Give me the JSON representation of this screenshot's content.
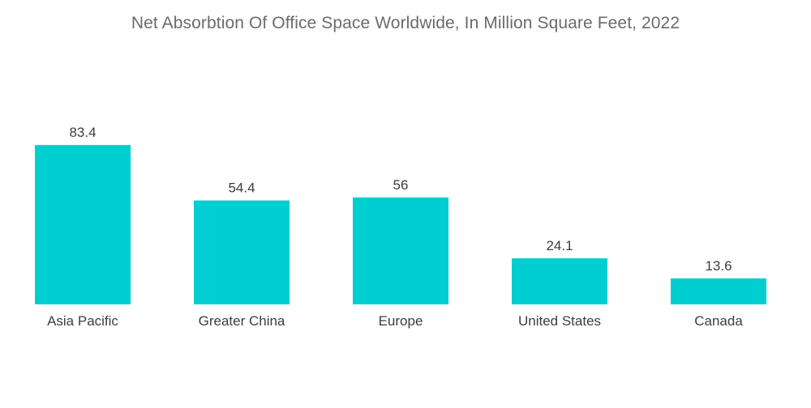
{
  "chart_data": {
    "type": "bar",
    "title": "Net Absorbtion Of Office Space Worldwide, In Million Square Feet, 2022",
    "categories": [
      "Asia Pacific",
      "Greater China",
      "Europe",
      "United States",
      "Canada"
    ],
    "values": [
      83.4,
      54.4,
      56,
      24.1,
      13.6
    ],
    "value_labels": [
      "83.4",
      "54.4",
      "56",
      "24.1",
      "13.6"
    ],
    "xlabel": "",
    "ylabel": "",
    "ylim": [
      0,
      100
    ],
    "grid": false,
    "bar_color": "#00CED1"
  }
}
